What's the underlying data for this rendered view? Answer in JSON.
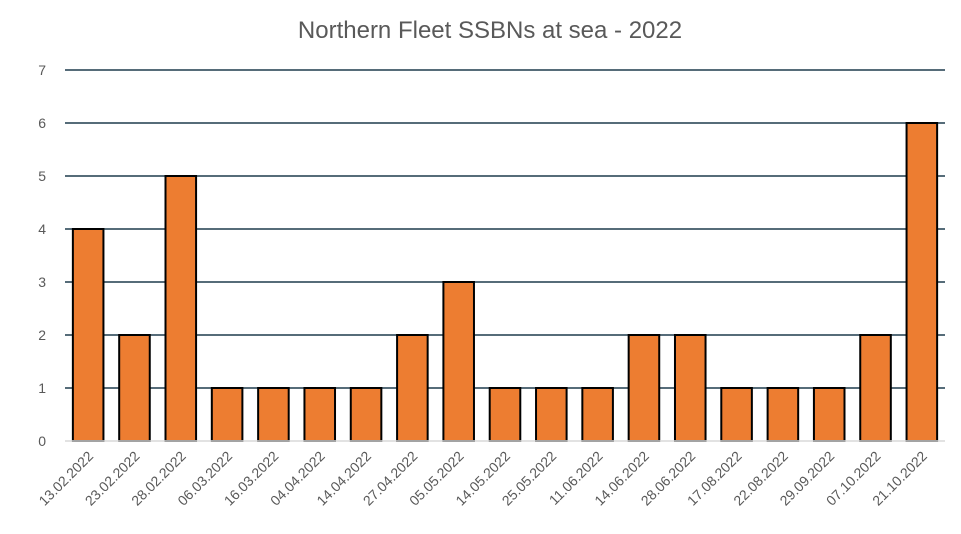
{
  "chart_data": {
    "type": "bar",
    "title": "Northern Fleet SSBNs at sea - 2022",
    "xlabel": "",
    "ylabel": "",
    "ylim": [
      0,
      7
    ],
    "yticks": [
      "0",
      "1",
      "2",
      "3",
      "4",
      "5",
      "6",
      "7"
    ],
    "grid": true,
    "legend": "none",
    "bar_color": "#ED7D31",
    "categories": [
      "13.02.2022",
      "23.02.2022",
      "28.02.2022",
      "06.03.2022",
      "16.03.2022",
      "04.04.2022",
      "14.04.2022",
      "27.04.2022",
      "05.05.2022",
      "14.05.2022",
      "25.05.2022",
      "11.06.2022",
      "14.06.2022",
      "28.06.2022",
      "17.08.2022",
      "22.08.2022",
      "29.09.2022",
      "07.10.2022",
      "21.10.2022"
    ],
    "values": [
      4,
      2,
      5,
      1,
      1,
      1,
      1,
      2,
      3,
      1,
      1,
      1,
      2,
      2,
      1,
      1,
      1,
      2,
      6
    ]
  }
}
